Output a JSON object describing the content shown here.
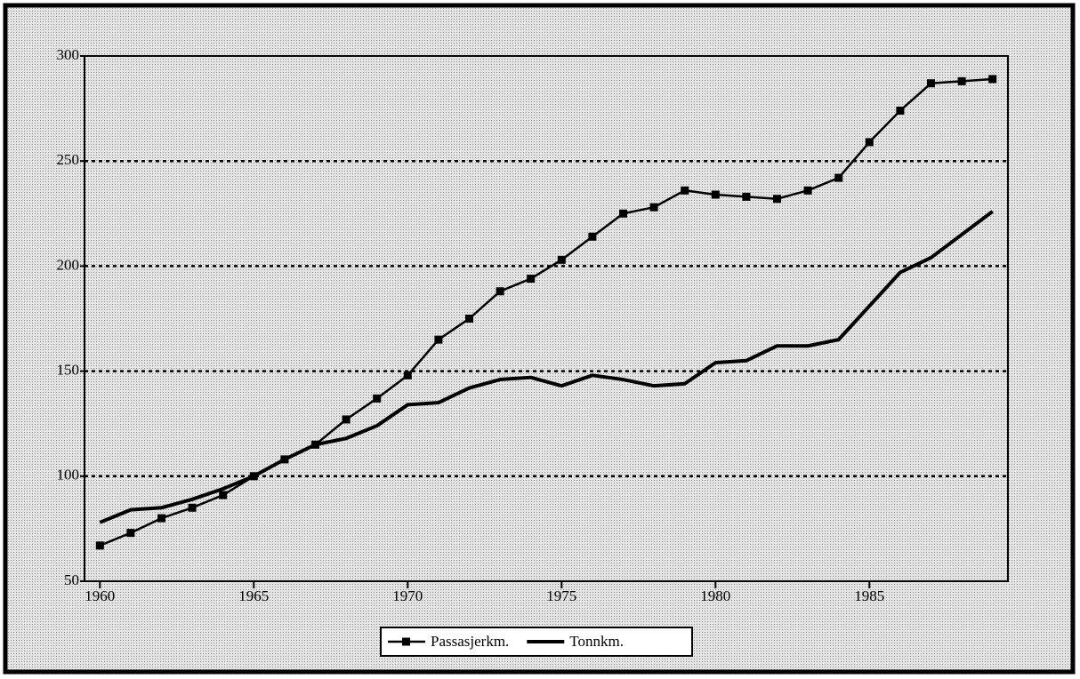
{
  "chart_data": {
    "type": "line",
    "x": [
      1960,
      1961,
      1962,
      1963,
      1964,
      1965,
      1966,
      1967,
      1968,
      1969,
      1970,
      1971,
      1972,
      1973,
      1974,
      1975,
      1976,
      1977,
      1978,
      1979,
      1980,
      1981,
      1982,
      1983,
      1984,
      1985,
      1986,
      1987,
      1988,
      1989
    ],
    "series": [
      {
        "name": "Passasjerkm.",
        "color": "#000000",
        "marker": "square",
        "values": [
          67,
          73,
          80,
          85,
          91,
          100,
          108,
          115,
          127,
          137,
          148,
          165,
          175,
          188,
          194,
          203,
          214,
          225,
          228,
          236,
          234,
          233,
          232,
          236,
          242,
          259,
          274,
          287,
          288,
          289
        ]
      },
      {
        "name": "Tonnkm.",
        "color": "#000000",
        "marker": "none",
        "values": [
          78,
          84,
          85,
          89,
          94,
          100,
          108,
          115,
          118,
          124,
          134,
          135,
          142,
          146,
          147,
          143,
          148,
          146,
          143,
          144,
          154,
          155,
          162,
          162,
          165,
          181,
          197,
          204,
          215,
          226
        ]
      }
    ],
    "xlim": [
      1959.5,
      1989.5
    ],
    "xticks": [
      1960,
      1965,
      1970,
      1975,
      1980,
      1985
    ],
    "ylim": [
      50,
      300
    ],
    "yticks": [
      50,
      100,
      150,
      200,
      250,
      300
    ],
    "grid": true,
    "legend": "bottom"
  }
}
